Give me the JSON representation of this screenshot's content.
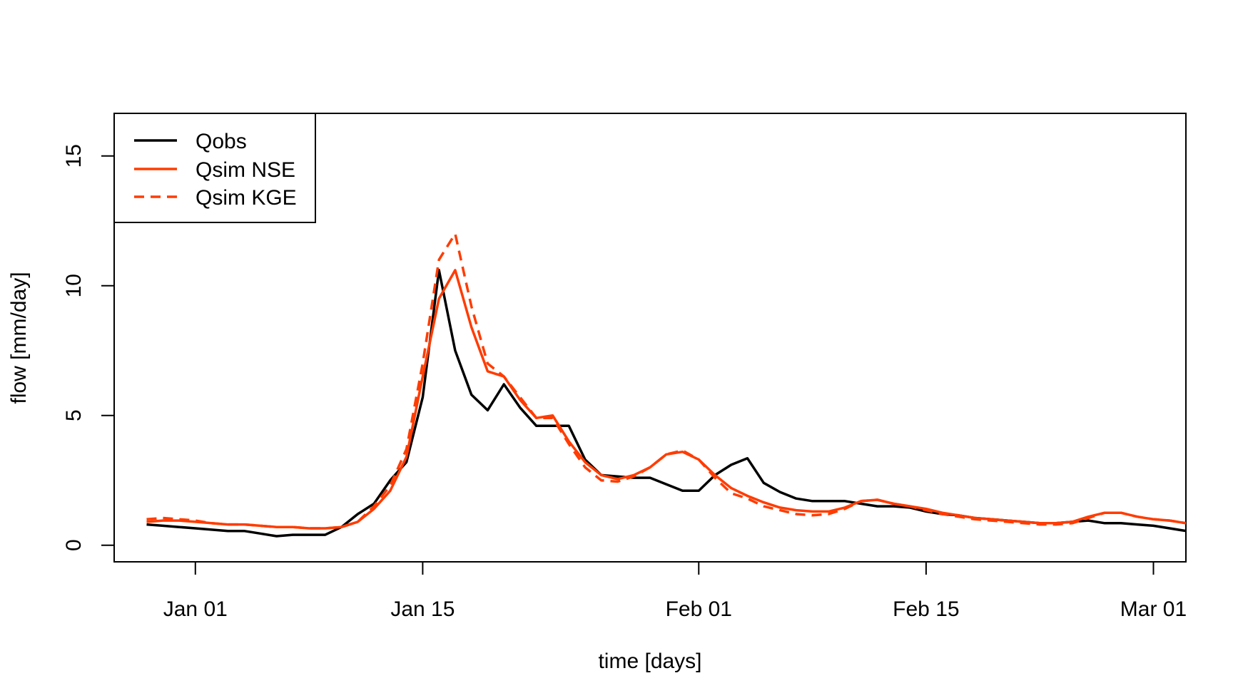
{
  "chart_data": {
    "type": "line",
    "xlabel": "time [days]",
    "ylabel": "flow [mm/day]",
    "xlim": [
      "2010-12-27",
      "2011-03-03"
    ],
    "ylim": [
      0,
      16
    ],
    "x_ticks": [
      {
        "date": "2011-01-01",
        "label": "Jan 01"
      },
      {
        "date": "2011-01-15",
        "label": "Jan 15"
      },
      {
        "date": "2011-02-01",
        "label": "Feb 01"
      },
      {
        "date": "2011-02-15",
        "label": "Feb 15"
      },
      {
        "date": "2011-03-01",
        "label": "Mar 01"
      }
    ],
    "y_ticks": [
      {
        "value": 0,
        "label": "0"
      },
      {
        "value": 5,
        "label": "5"
      },
      {
        "value": 10,
        "label": "10"
      },
      {
        "value": 15,
        "label": "15"
      }
    ],
    "grid": false,
    "legend_position": "top-left",
    "colors": {
      "obs": "#000000",
      "sim": "#ff3c00"
    },
    "x": [
      "2010-12-29",
      "2010-12-30",
      "2010-12-31",
      "2011-01-01",
      "2011-01-02",
      "2011-01-03",
      "2011-01-04",
      "2011-01-05",
      "2011-01-06",
      "2011-01-07",
      "2011-01-08",
      "2011-01-09",
      "2011-01-10",
      "2011-01-11",
      "2011-01-12",
      "2011-01-13",
      "2011-01-14",
      "2011-01-15",
      "2011-01-16",
      "2011-01-17",
      "2011-01-18",
      "2011-01-19",
      "2011-01-20",
      "2011-01-21",
      "2011-01-22",
      "2011-01-23",
      "2011-01-24",
      "2011-01-25",
      "2011-01-26",
      "2011-01-27",
      "2011-01-28",
      "2011-01-29",
      "2011-01-30",
      "2011-01-31",
      "2011-02-01",
      "2011-02-02",
      "2011-02-03",
      "2011-02-04",
      "2011-02-05",
      "2011-02-06",
      "2011-02-07",
      "2011-02-08",
      "2011-02-09",
      "2011-02-10",
      "2011-02-11",
      "2011-02-12",
      "2011-02-13",
      "2011-02-14",
      "2011-02-15",
      "2011-02-16",
      "2011-02-17",
      "2011-02-18",
      "2011-02-19",
      "2011-02-20",
      "2011-02-21",
      "2011-02-22",
      "2011-02-23",
      "2011-02-24",
      "2011-02-25",
      "2011-02-26",
      "2011-02-27",
      "2011-02-28",
      "2011-03-01",
      "2011-03-02",
      "2011-03-03"
    ],
    "series": [
      {
        "name": "Qobs",
        "color": "#000000",
        "dash": "solid",
        "values": [
          0.8,
          0.75,
          0.7,
          0.65,
          0.6,
          0.55,
          0.55,
          0.45,
          0.35,
          0.4,
          0.4,
          0.4,
          0.7,
          1.2,
          1.6,
          2.5,
          3.2,
          5.7,
          10.6,
          7.5,
          5.8,
          5.2,
          6.2,
          5.3,
          4.6,
          4.6,
          4.6,
          3.3,
          2.7,
          2.65,
          2.6,
          2.6,
          2.35,
          2.1,
          2.1,
          2.7,
          3.1,
          3.35,
          2.4,
          2.05,
          1.8,
          1.7,
          1.7,
          1.7,
          1.6,
          1.5,
          1.5,
          1.45,
          1.3,
          1.2,
          1.15,
          1.05,
          1.0,
          0.95,
          0.9,
          0.85,
          0.85,
          0.9,
          0.95,
          0.85,
          0.85,
          0.8,
          0.75,
          0.65,
          0.55
        ]
      },
      {
        "name": "Qsim NSE",
        "color": "#ff3c00",
        "dash": "solid",
        "values": [
          0.9,
          0.95,
          0.95,
          0.9,
          0.85,
          0.8,
          0.8,
          0.75,
          0.7,
          0.7,
          0.65,
          0.65,
          0.7,
          0.9,
          1.4,
          2.1,
          3.4,
          6.5,
          9.5,
          10.6,
          8.4,
          6.7,
          6.5,
          5.6,
          4.9,
          5.0,
          4.0,
          3.2,
          2.7,
          2.55,
          2.7,
          3.0,
          3.5,
          3.6,
          3.3,
          2.7,
          2.2,
          1.9,
          1.65,
          1.45,
          1.35,
          1.3,
          1.3,
          1.45,
          1.7,
          1.75,
          1.6,
          1.5,
          1.4,
          1.25,
          1.15,
          1.05,
          1.0,
          0.95,
          0.9,
          0.85,
          0.85,
          0.9,
          1.1,
          1.25,
          1.25,
          1.1,
          1.0,
          0.95,
          0.85
        ]
      },
      {
        "name": "Qsim KGE",
        "color": "#ff3c00",
        "dash": "dashed",
        "values": [
          1.0,
          1.05,
          1.0,
          0.95,
          0.85,
          0.8,
          0.8,
          0.75,
          0.7,
          0.7,
          0.65,
          0.65,
          0.7,
          0.9,
          1.5,
          2.3,
          3.7,
          7.0,
          11.0,
          12.0,
          9.2,
          7.0,
          6.5,
          5.7,
          4.9,
          4.9,
          3.9,
          3.0,
          2.5,
          2.45,
          2.65,
          3.0,
          3.5,
          3.65,
          3.3,
          2.6,
          2.0,
          1.8,
          1.5,
          1.35,
          1.2,
          1.15,
          1.2,
          1.4,
          1.7,
          1.75,
          1.6,
          1.5,
          1.35,
          1.2,
          1.1,
          1.0,
          0.95,
          0.9,
          0.85,
          0.8,
          0.8,
          0.85,
          1.05,
          1.25,
          1.25,
          1.1,
          1.0,
          0.95,
          0.85
        ]
      }
    ]
  }
}
